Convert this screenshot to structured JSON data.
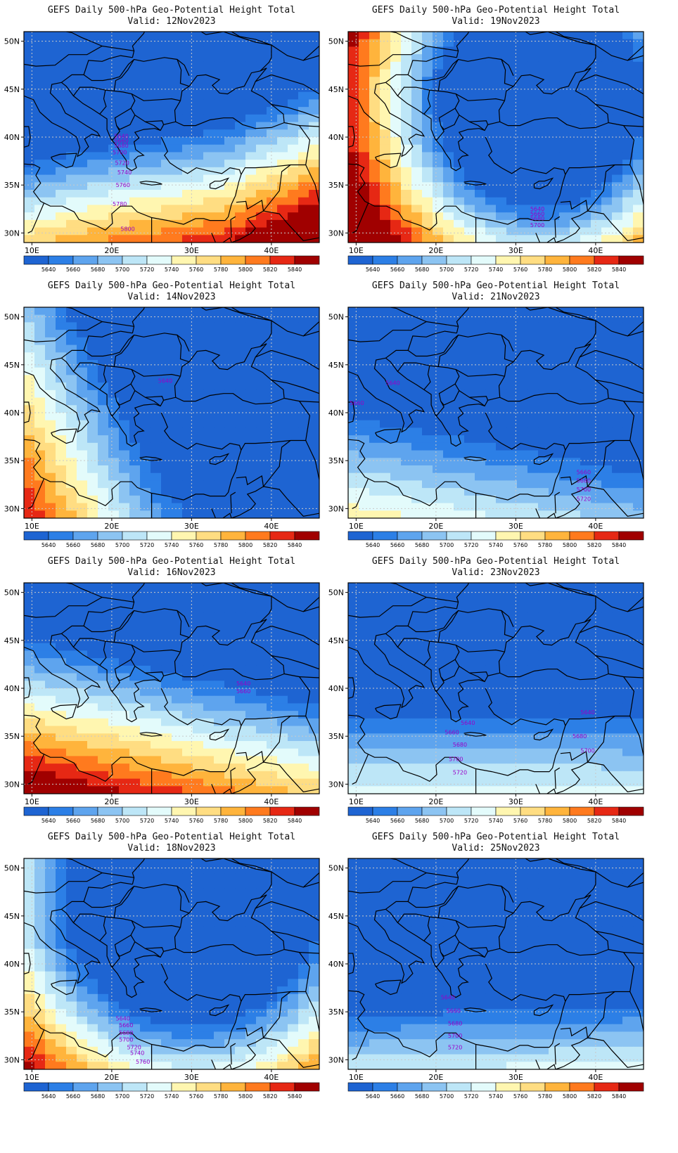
{
  "title": "GEFS Daily 500-hPa Geo-Potential Height Total",
  "valid_prefix": "Valid:",
  "lat_labels": [
    "50N",
    "45N",
    "40N",
    "35N",
    "30N"
  ],
  "lon_labels": [
    "10E",
    "20E",
    "30E",
    "40E"
  ],
  "colorbar": {
    "labels": [
      "5640",
      "5660",
      "5680",
      "5700",
      "5720",
      "5740",
      "5760",
      "5780",
      "5800",
      "5820",
      "5840"
    ],
    "colors": [
      "#1e64d2",
      "#2c7fe6",
      "#5ea4ee",
      "#8cc4f2",
      "#bde6f7",
      "#e3fbfb",
      "#fff6b0",
      "#ffdd82",
      "#ffb43c",
      "#ff7a1e",
      "#e62814",
      "#a00000"
    ]
  },
  "contour_color": "#9a00c8",
  "panels": [
    {
      "valid": "12Nov2023",
      "labels": [
        "5640",
        "5660",
        "5680",
        "5700",
        "5720",
        "5740",
        "5760",
        "5780",
        "5800"
      ]
    },
    {
      "valid": "19Nov2023",
      "labels": [
        "5640",
        "5660",
        "5680",
        "5700"
      ]
    },
    {
      "valid": "14Nov2023",
      "labels": [
        "5640"
      ]
    },
    {
      "valid": "21Nov2023",
      "labels": [
        "5640",
        "5660",
        "5660",
        "5680",
        "5700",
        "5720"
      ]
    },
    {
      "valid": "16Nov2023",
      "labels": [
        "5640",
        "5660"
      ]
    },
    {
      "valid": "23Nov2023",
      "labels": [
        "5640",
        "5660",
        "5680",
        "5700",
        "5720",
        "5640",
        "5680",
        "5700"
      ]
    },
    {
      "valid": "18Nov2023",
      "labels": [
        "5640",
        "5660",
        "5680",
        "5700",
        "5720",
        "5740",
        "5760"
      ]
    },
    {
      "valid": "25Nov2023",
      "labels": [
        "5640",
        "5660",
        "5680",
        "5700",
        "5720"
      ]
    }
  ]
}
